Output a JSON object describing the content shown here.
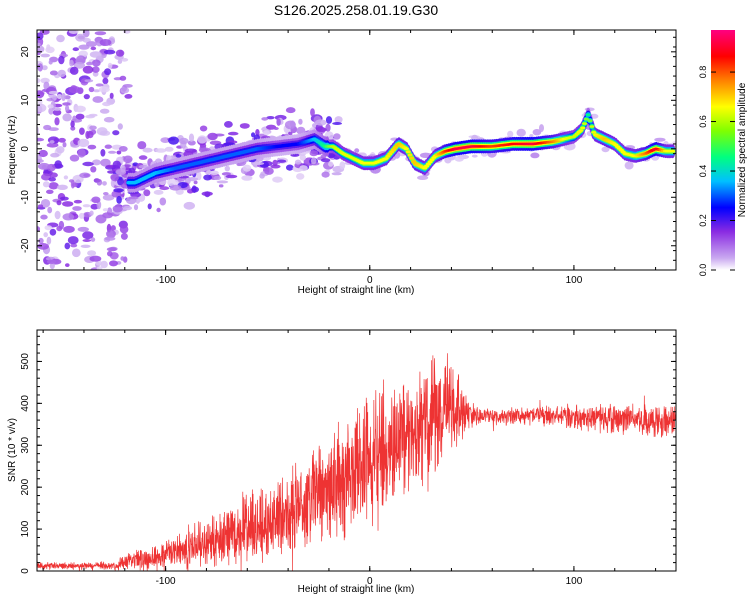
{
  "figure_title": "S126.2025.258.01.19.G30",
  "chart_data": [
    {
      "type": "heatmap",
      "title": "S126.2025.258.01.19.G30",
      "xlabel": "Height of straight line (km)",
      "ylabel": "Frequency (Hz)",
      "xlim": [
        -163,
        150
      ],
      "ylim": [
        -25,
        24.5
      ],
      "xticks": [
        -100,
        0,
        100
      ],
      "yticks": [
        -20,
        -10,
        0,
        10,
        20
      ],
      "xtick_labels": [
        "-100",
        "0",
        "100"
      ],
      "ytick_labels": [
        "-20",
        "-10",
        "0",
        "10",
        "20"
      ],
      "colorbar": {
        "label": "Normalized spectral amplitude",
        "range": [
          0,
          0.97
        ],
        "ticks": [
          0.0,
          0.2,
          0.4,
          0.6,
          0.8
        ],
        "tick_labels": [
          "0.0",
          "0.2",
          "0.4",
          "0.6",
          "0.8"
        ],
        "colormap": [
          "#ffffff",
          "#c9a8f0",
          "#8a2be2",
          "#0000ff",
          "#00c0ff",
          "#00ff80",
          "#c8ff00",
          "#ffff00",
          "#ff8000",
          "#ff0000",
          "#ff0080"
        ]
      },
      "ridge": {
        "x": [
          -115,
          -105,
          -95,
          -85,
          -75,
          -65,
          -55,
          -45,
          -35,
          -27,
          -22,
          -18,
          -13,
          -8,
          -3,
          2,
          8,
          14,
          18,
          22,
          27,
          32,
          37,
          42,
          50,
          60,
          70,
          80,
          90,
          100,
          104,
          107,
          110,
          115,
          120,
          125,
          130,
          135,
          140,
          145,
          148
        ],
        "y": [
          -7,
          -5,
          -4,
          -3,
          -2,
          -1,
          0,
          0.5,
          1,
          2,
          0.5,
          0.5,
          -1,
          -2,
          -3,
          -3,
          -2,
          1,
          0,
          -3,
          -4,
          -1.5,
          -0.5,
          0,
          0.5,
          0.5,
          1,
          1,
          1.5,
          2.5,
          4,
          7,
          3,
          2,
          1,
          -1,
          -1.5,
          -1,
          0,
          -0.5,
          -0.5
        ],
        "intensity": [
          0.4,
          0.4,
          0.35,
          0.35,
          0.35,
          0.35,
          0.35,
          0.3,
          0.3,
          0.4,
          0.5,
          0.6,
          0.65,
          0.65,
          0.7,
          0.7,
          0.7,
          0.75,
          0.7,
          0.75,
          0.7,
          0.7,
          0.85,
          0.95,
          0.95,
          0.85,
          0.9,
          0.95,
          0.8,
          0.6,
          0.7,
          0.5,
          0.7,
          0.75,
          0.7,
          0.7,
          0.7,
          0.8,
          0.95,
          0.7,
          0.7
        ]
      }
    },
    {
      "type": "line",
      "xlabel": "Height of straight line (km)",
      "ylabel": "SNR (10 * v/v)",
      "xlim": [
        -163,
        150
      ],
      "ylim": [
        0,
        575
      ],
      "xticks": [
        -100,
        0,
        100
      ],
      "yticks": [
        0,
        100,
        200,
        300,
        400,
        500
      ],
      "xtick_labels": [
        "-100",
        "0",
        "100"
      ],
      "ytick_labels": [
        "0",
        "100",
        "200",
        "300",
        "400",
        "500"
      ],
      "series": [
        {
          "name": "SNR",
          "color": "#ee3333",
          "envelope_x": [
            -163,
            -140,
            -125,
            -115,
            -100,
            -90,
            -80,
            -70,
            -60,
            -50,
            -40,
            -30,
            -20,
            -10,
            0,
            10,
            20,
            30,
            38,
            43,
            48,
            55,
            65,
            80,
            100,
            120,
            140,
            150
          ],
          "envelope_mean": [
            12,
            12,
            13,
            25,
            40,
            55,
            65,
            80,
            95,
            115,
            140,
            170,
            200,
            230,
            270,
            300,
            330,
            360,
            390,
            395,
            375,
            370,
            370,
            372,
            368,
            362,
            360,
            360
          ],
          "envelope_amp": [
            8,
            8,
            10,
            25,
            35,
            45,
            55,
            65,
            75,
            90,
            100,
            120,
            130,
            140,
            150,
            150,
            150,
            140,
            130,
            100,
            40,
            20,
            20,
            22,
            28,
            32,
            40,
            40
          ]
        }
      ]
    }
  ]
}
